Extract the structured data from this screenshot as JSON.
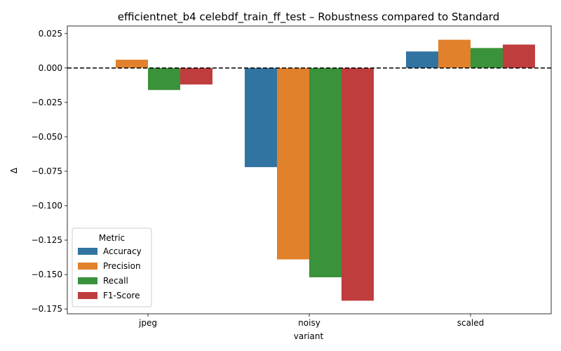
{
  "chart_data": {
    "type": "bar",
    "title": "efficientnet_b4 celebdf_train_ff_test – Robustness compared to Standard",
    "xlabel": "variant",
    "ylabel": "Δ",
    "categories": [
      "jpeg",
      "noisy",
      "scaled"
    ],
    "ylim": [
      -0.1785,
      0.0305
    ],
    "yticks": [
      0.025,
      0.0,
      -0.025,
      -0.05,
      -0.075,
      -0.1,
      -0.125,
      -0.15,
      -0.175
    ],
    "ytick_labels": [
      "0.025",
      "0.000",
      "−0.025",
      "−0.050",
      "−0.075",
      "−0.100",
      "−0.125",
      "−0.150",
      "−0.175"
    ],
    "reference_line": 0.0,
    "legend": {
      "title": "Metric",
      "placement": "lower-left"
    },
    "series": [
      {
        "name": "Accuracy",
        "color": "#3274a1",
        "values": [
          0.0,
          -0.072,
          0.012
        ]
      },
      {
        "name": "Precision",
        "color": "#e1812c",
        "values": [
          0.006,
          -0.139,
          0.0205
        ]
      },
      {
        "name": "Recall",
        "color": "#3a923a",
        "values": [
          -0.016,
          -0.152,
          0.0145
        ]
      },
      {
        "name": "F1-Score",
        "color": "#c03d3e",
        "values": [
          -0.012,
          -0.169,
          0.017
        ]
      }
    ]
  }
}
